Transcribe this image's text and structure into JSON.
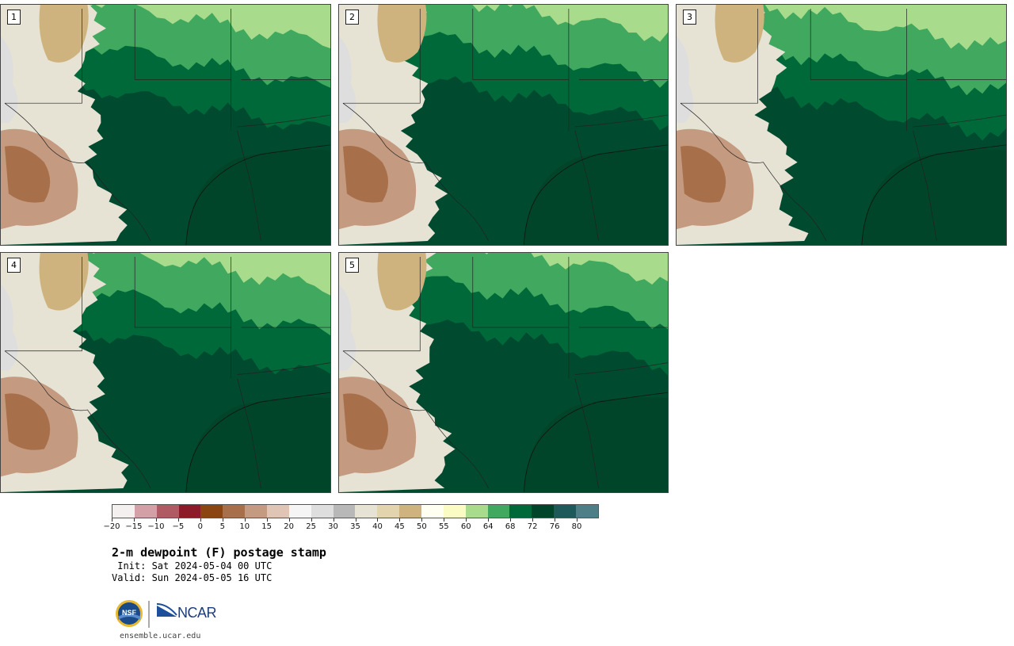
{
  "panels": [
    {
      "label": "1"
    },
    {
      "label": "2"
    },
    {
      "label": "3"
    },
    {
      "label": "4"
    },
    {
      "label": "5"
    }
  ],
  "colorbar": {
    "colors": [
      "#f5f0f0",
      "#d4a0a8",
      "#b05a64",
      "#8c1a28",
      "#8b4513",
      "#a8704a",
      "#c49a80",
      "#e0c4b4",
      "#f5f5f5",
      "#dedede",
      "#b8b8b8",
      "#e6e3d4",
      "#e2d5ae",
      "#cfb37e",
      "#fffff2",
      "#fbfbc4",
      "#a8dc8c",
      "#41a85f",
      "#00693a",
      "#00452a",
      "#1e5a5a",
      "#4e7e86"
    ],
    "ticks": [
      "−20",
      "−15",
      "−10",
      "−5",
      "0",
      "5",
      "10",
      "15",
      "20",
      "25",
      "30",
      "35",
      "40",
      "45",
      "50",
      "55",
      "60",
      "64",
      "68",
      "72",
      "76",
      "80"
    ]
  },
  "title": "2-m dewpoint (F) postage stamp",
  "init": " Init: Sat 2024-05-04 00 UTC",
  "valid": "Valid: Sun 2024-05-05 16 UTC",
  "logos": {
    "nsf": "NSF",
    "ncar": "NCAR"
  },
  "website": "ensemble.ucar.edu"
}
